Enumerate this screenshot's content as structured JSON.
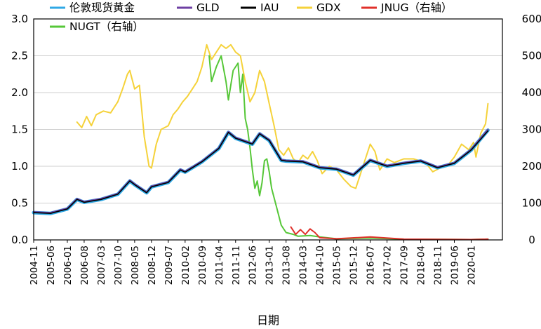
{
  "chart_data": {
    "type": "line",
    "xlabel": "日期",
    "ylabel": "",
    "ylim": [
      0,
      3.0
    ],
    "y2lim": [
      0,
      600
    ],
    "yticks": [
      "0.0",
      "0.5",
      "1.0",
      "1.5",
      "2.0",
      "2.5",
      "3.0"
    ],
    "y2ticks": [
      "0",
      "100",
      "200",
      "300",
      "400",
      "500",
      "600"
    ],
    "grid": "horizontal",
    "legend_position": "top",
    "x_start": "2004-11",
    "x_end": "2021-02",
    "xticks": [
      "2004-11",
      "2005-06",
      "2006-01",
      "2006-08",
      "2007-03",
      "2007-10",
      "2008-05",
      "2008-12",
      "2009-07",
      "2010-02",
      "2010-09",
      "2011-04",
      "2011-11",
      "2012-06",
      "2013-01",
      "2013-08",
      "2014-03",
      "2014-10",
      "2015-05",
      "2015-12",
      "2016-07",
      "2017-02",
      "2017-09",
      "2018-04",
      "2018-11",
      "2019-06",
      "2020-01"
    ],
    "series": [
      {
        "name": "伦敦现货黄金",
        "axis": "left",
        "color": "#2fa8e6",
        "width": 5,
        "points": [
          [
            "2004-11",
            0.37
          ],
          [
            "2005-06",
            0.36
          ],
          [
            "2006-01",
            0.42
          ],
          [
            "2006-05",
            0.55
          ],
          [
            "2006-08",
            0.51
          ],
          [
            "2007-03",
            0.55
          ],
          [
            "2007-10",
            0.62
          ],
          [
            "2008-03",
            0.8
          ],
          [
            "2008-05",
            0.75
          ],
          [
            "2008-10",
            0.64
          ],
          [
            "2008-12",
            0.72
          ],
          [
            "2009-07",
            0.78
          ],
          [
            "2009-12",
            0.95
          ],
          [
            "2010-02",
            0.92
          ],
          [
            "2010-09",
            1.06
          ],
          [
            "2011-04",
            1.24
          ],
          [
            "2011-08",
            1.46
          ],
          [
            "2011-11",
            1.38
          ],
          [
            "2012-06",
            1.3
          ],
          [
            "2012-09",
            1.44
          ],
          [
            "2013-01",
            1.35
          ],
          [
            "2013-06",
            1.08
          ],
          [
            "2013-08",
            1.07
          ],
          [
            "2014-03",
            1.06
          ],
          [
            "2014-10",
            0.98
          ],
          [
            "2015-05",
            0.96
          ],
          [
            "2015-12",
            0.88
          ],
          [
            "2016-07",
            1.08
          ],
          [
            "2017-02",
            1.0
          ],
          [
            "2017-09",
            1.04
          ],
          [
            "2018-04",
            1.07
          ],
          [
            "2018-11",
            0.98
          ],
          [
            "2019-06",
            1.04
          ],
          [
            "2020-01",
            1.22
          ],
          [
            "2020-08",
            1.49
          ]
        ]
      },
      {
        "name": "GLD",
        "axis": "left",
        "color": "#6e3fa3",
        "width": 2,
        "points": [
          [
            "2004-11",
            0.38
          ],
          [
            "2005-06",
            0.37
          ],
          [
            "2006-01",
            0.43
          ],
          [
            "2006-05",
            0.56
          ],
          [
            "2006-08",
            0.52
          ],
          [
            "2007-03",
            0.56
          ],
          [
            "2007-10",
            0.63
          ],
          [
            "2008-03",
            0.81
          ],
          [
            "2008-05",
            0.76
          ],
          [
            "2008-10",
            0.65
          ],
          [
            "2008-12",
            0.73
          ],
          [
            "2009-07",
            0.79
          ],
          [
            "2009-12",
            0.96
          ],
          [
            "2010-02",
            0.93
          ],
          [
            "2010-09",
            1.07
          ],
          [
            "2011-04",
            1.25
          ],
          [
            "2011-08",
            1.47
          ],
          [
            "2011-11",
            1.39
          ],
          [
            "2012-06",
            1.31
          ],
          [
            "2012-09",
            1.45
          ],
          [
            "2013-01",
            1.36
          ],
          [
            "2013-06",
            1.09
          ],
          [
            "2013-08",
            1.08
          ],
          [
            "2014-03",
            1.07
          ],
          [
            "2014-10",
            0.99
          ],
          [
            "2015-05",
            0.97
          ],
          [
            "2015-12",
            0.89
          ],
          [
            "2016-07",
            1.09
          ],
          [
            "2017-02",
            1.01
          ],
          [
            "2017-09",
            1.05
          ],
          [
            "2018-04",
            1.08
          ],
          [
            "2018-11",
            0.99
          ],
          [
            "2019-06",
            1.05
          ],
          [
            "2020-01",
            1.23
          ],
          [
            "2020-08",
            1.5
          ]
        ]
      },
      {
        "name": "IAU",
        "axis": "left",
        "color": "#000000",
        "width": 1.6,
        "points": [
          [
            "2004-11",
            0.37
          ],
          [
            "2005-06",
            0.36
          ],
          [
            "2006-01",
            0.42
          ],
          [
            "2006-05",
            0.55
          ],
          [
            "2006-08",
            0.51
          ],
          [
            "2007-03",
            0.55
          ],
          [
            "2007-10",
            0.62
          ],
          [
            "2008-03",
            0.8
          ],
          [
            "2008-05",
            0.75
          ],
          [
            "2008-10",
            0.64
          ],
          [
            "2008-12",
            0.72
          ],
          [
            "2009-07",
            0.78
          ],
          [
            "2009-12",
            0.95
          ],
          [
            "2010-02",
            0.92
          ],
          [
            "2010-09",
            1.06
          ],
          [
            "2011-04",
            1.24
          ],
          [
            "2011-08",
            1.46
          ],
          [
            "2011-11",
            1.38
          ],
          [
            "2012-06",
            1.3
          ],
          [
            "2012-09",
            1.44
          ],
          [
            "2013-01",
            1.35
          ],
          [
            "2013-06",
            1.08
          ],
          [
            "2013-08",
            1.07
          ],
          [
            "2014-03",
            1.06
          ],
          [
            "2014-10",
            0.98
          ],
          [
            "2015-05",
            0.96
          ],
          [
            "2015-12",
            0.88
          ],
          [
            "2016-07",
            1.08
          ],
          [
            "2017-02",
            1.0
          ],
          [
            "2017-09",
            1.04
          ],
          [
            "2018-04",
            1.07
          ],
          [
            "2018-11",
            0.98
          ],
          [
            "2019-06",
            1.04
          ],
          [
            "2020-01",
            1.22
          ],
          [
            "2020-08",
            1.48
          ]
        ]
      },
      {
        "name": "GDX",
        "axis": "right",
        "color": "#f5d23a",
        "width": 2,
        "points": [
          [
            "2006-05",
            320
          ],
          [
            "2006-07",
            305
          ],
          [
            "2006-09",
            335
          ],
          [
            "2006-11",
            310
          ],
          [
            "2007-01",
            340
          ],
          [
            "2007-04",
            350
          ],
          [
            "2007-07",
            345
          ],
          [
            "2007-10",
            375
          ],
          [
            "2007-12",
            410
          ],
          [
            "2008-02",
            450
          ],
          [
            "2008-03",
            460
          ],
          [
            "2008-05",
            410
          ],
          [
            "2008-07",
            420
          ],
          [
            "2008-09",
            280
          ],
          [
            "2008-11",
            200
          ],
          [
            "2008-12",
            195
          ],
          [
            "2009-02",
            260
          ],
          [
            "2009-04",
            300
          ],
          [
            "2009-07",
            310
          ],
          [
            "2009-09",
            340
          ],
          [
            "2009-11",
            355
          ],
          [
            "2010-01",
            375
          ],
          [
            "2010-03",
            390
          ],
          [
            "2010-05",
            410
          ],
          [
            "2010-07",
            430
          ],
          [
            "2010-09",
            470
          ],
          [
            "2010-11",
            530
          ],
          [
            "2011-01",
            490
          ],
          [
            "2011-03",
            510
          ],
          [
            "2011-05",
            530
          ],
          [
            "2011-07",
            520
          ],
          [
            "2011-09",
            530
          ],
          [
            "2011-11",
            510
          ],
          [
            "2012-01",
            500
          ],
          [
            "2012-03",
            430
          ],
          [
            "2012-05",
            375
          ],
          [
            "2012-07",
            400
          ],
          [
            "2012-09",
            460
          ],
          [
            "2012-11",
            430
          ],
          [
            "2013-01",
            370
          ],
          [
            "2013-03",
            310
          ],
          [
            "2013-05",
            245
          ],
          [
            "2013-07",
            230
          ],
          [
            "2013-09",
            250
          ],
          [
            "2013-11",
            220
          ],
          [
            "2014-01",
            210
          ],
          [
            "2014-03",
            230
          ],
          [
            "2014-05",
            220
          ],
          [
            "2014-07",
            240
          ],
          [
            "2014-09",
            215
          ],
          [
            "2014-11",
            180
          ],
          [
            "2015-02",
            200
          ],
          [
            "2015-05",
            190
          ],
          [
            "2015-08",
            165
          ],
          [
            "2015-11",
            145
          ],
          [
            "2016-01",
            140
          ],
          [
            "2016-04",
            200
          ],
          [
            "2016-07",
            260
          ],
          [
            "2016-09",
            240
          ],
          [
            "2016-11",
            190
          ],
          [
            "2017-02",
            220
          ],
          [
            "2017-05",
            210
          ],
          [
            "2017-09",
            220
          ],
          [
            "2018-01",
            220
          ],
          [
            "2018-06",
            210
          ],
          [
            "2018-09",
            185
          ],
          [
            "2018-12",
            195
          ],
          [
            "2019-03",
            200
          ],
          [
            "2019-06",
            225
          ],
          [
            "2019-09",
            260
          ],
          [
            "2019-12",
            245
          ],
          [
            "2020-02",
            265
          ],
          [
            "2020-03",
            225
          ],
          [
            "2020-05",
            290
          ],
          [
            "2020-07",
            315
          ],
          [
            "2020-08",
            370
          ]
        ]
      },
      {
        "name": "NUGT（右轴）",
        "axis": "right",
        "color": "#56c738",
        "width": 2,
        "points": [
          [
            "2010-12",
            500
          ],
          [
            "2011-01",
            430
          ],
          [
            "2011-03",
            470
          ],
          [
            "2011-05",
            500
          ],
          [
            "2011-07",
            430
          ],
          [
            "2011-08",
            380
          ],
          [
            "2011-10",
            460
          ],
          [
            "2011-12",
            480
          ],
          [
            "2012-01",
            400
          ],
          [
            "2012-02",
            450
          ],
          [
            "2012-03",
            330
          ],
          [
            "2012-04",
            300
          ],
          [
            "2012-05",
            250
          ],
          [
            "2012-06",
            190
          ],
          [
            "2012-07",
            140
          ],
          [
            "2012-08",
            160
          ],
          [
            "2012-09",
            120
          ],
          [
            "2012-10",
            155
          ],
          [
            "2012-11",
            215
          ],
          [
            "2012-12",
            220
          ],
          [
            "2013-01",
            185
          ],
          [
            "2013-02",
            140
          ],
          [
            "2013-04",
            90
          ],
          [
            "2013-06",
            40
          ],
          [
            "2013-08",
            20
          ],
          [
            "2013-11",
            15
          ],
          [
            "2014-01",
            10
          ],
          [
            "2014-06",
            12
          ],
          [
            "2014-10",
            8
          ],
          [
            "2015-05",
            3
          ],
          [
            "2016-07",
            5
          ],
          [
            "2017-09",
            2
          ],
          [
            "2020-01",
            1
          ],
          [
            "2020-08",
            2
          ]
        ]
      },
      {
        "name": "JNUG（右轴）",
        "axis": "right",
        "color": "#e0302a",
        "width": 2,
        "points": [
          [
            "2013-10",
            35
          ],
          [
            "2013-12",
            15
          ],
          [
            "2014-02",
            28
          ],
          [
            "2014-04",
            15
          ],
          [
            "2014-06",
            30
          ],
          [
            "2014-08",
            20
          ],
          [
            "2014-10",
            6
          ],
          [
            "2015-05",
            3
          ],
          [
            "2016-07",
            8
          ],
          [
            "2017-09",
            2
          ],
          [
            "2020-01",
            1
          ],
          [
            "2020-08",
            2
          ]
        ]
      }
    ]
  }
}
